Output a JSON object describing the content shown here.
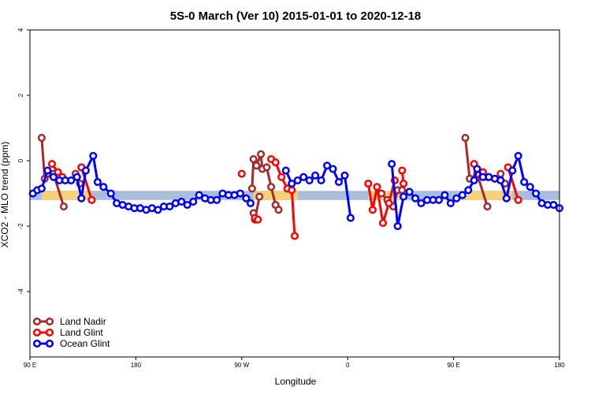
{
  "chart_data": {
    "type": "line",
    "title": "5S-0 March (Ver 10)   2015-01-01 to 2020-12-18",
    "xlabel": "Longitude",
    "ylabel": "XCO2 - MLO trend (ppm)",
    "xlim": [
      0,
      360
    ],
    "ylim": [
      -6,
      4
    ],
    "xticks": [
      0,
      72,
      144,
      216,
      288,
      360
    ],
    "xtick_labels": [
      "90 E",
      "180",
      "90 W",
      "0",
      "90 E",
      "180"
    ],
    "yticks": [
      -4,
      -2,
      0,
      2,
      4
    ],
    "ytick_labels": [
      "-4",
      "-2",
      "0",
      "2",
      "4"
    ],
    "band": {
      "y_min": -1.2,
      "y_max": -0.92,
      "color": "#a9bedb",
      "highlight_color": "#f5d27a",
      "highlight_ranges": [
        [
          8,
          40
        ],
        [
          152,
          182
        ],
        [
          230,
          252
        ],
        [
          296,
          328
        ]
      ]
    },
    "series": [
      {
        "name": "Land Nadir",
        "color": "#a52a2a",
        "segments": [
          [
            [
              8,
              0.7
            ],
            [
              10,
              -0.55
            ],
            [
              16,
              -0.4
            ],
            [
              23,
              -1.4
            ]
          ],
          [
            [
              31,
              -0.4
            ],
            [
              34,
              -0.7
            ]
          ],
          [
            [
              151,
              -0.85
            ],
            [
              152,
              0.05
            ],
            [
              154,
              -0.15
            ],
            [
              157,
              0.2
            ],
            [
              158,
              -0.25
            ],
            [
              161,
              -0.2
            ],
            [
              164,
              -0.8
            ],
            [
              167,
              -1.35
            ],
            [
              169,
              -1.5
            ]
          ],
          [
            [
              152,
              -1.6
            ],
            [
              153,
              -1.8
            ],
            [
              156,
              -1.1
            ]
          ],
          [
            [
              239,
              -1.0
            ],
            [
              243,
              -1.2
            ],
            [
              247,
              -1.4
            ],
            [
              250,
              -0.9
            ],
            [
              253,
              -0.9
            ]
          ],
          [
            [
              296,
              0.7
            ],
            [
              299,
              -0.55
            ],
            [
              304,
              -0.4
            ],
            [
              311,
              -1.4
            ]
          ],
          [
            [
              320,
              -0.4
            ],
            [
              323,
              -0.7
            ]
          ]
        ]
      },
      {
        "name": "Land Glint",
        "color": "#ff0000",
        "segments": [
          [
            [
              15,
              -0.1
            ],
            [
              19,
              -0.35
            ],
            [
              22,
              -0.5
            ]
          ],
          [
            [
              35,
              -0.2
            ],
            [
              42,
              -1.2
            ]
          ],
          [
            [
              144,
              -0.4
            ]
          ],
          [
            [
              153,
              -1.75
            ],
            [
              155,
              -1.8
            ]
          ],
          [
            [
              164,
              0.05
            ],
            [
              167,
              -0.05
            ],
            [
              171,
              -0.5
            ],
            [
              175,
              -0.85
            ],
            [
              178,
              -0.9
            ],
            [
              180,
              -2.3
            ]
          ],
          [
            [
              230,
              -0.7
            ],
            [
              233,
              -1.5
            ],
            [
              236,
              -0.8
            ],
            [
              240,
              -1.9
            ],
            [
              244,
              -1.3
            ],
            [
              248,
              -0.6
            ]
          ],
          [
            [
              253,
              -0.3
            ],
            [
              254,
              -0.7
            ]
          ],
          [
            [
              302,
              -0.1
            ],
            [
              308,
              -0.35
            ],
            [
              311,
              -0.5
            ]
          ],
          [
            [
              325,
              -0.2
            ],
            [
              332,
              -1.2
            ]
          ]
        ]
      },
      {
        "name": "Ocean Glint",
        "color": "#0000ff",
        "segments": [
          [
            [
              2,
              -1.0
            ],
            [
              5,
              -0.9
            ],
            [
              8,
              -0.85
            ],
            [
              12,
              -0.3
            ],
            [
              16,
              -0.5
            ],
            [
              20,
              -0.6
            ],
            [
              24,
              -0.6
            ],
            [
              28,
              -0.6
            ],
            [
              32,
              -0.5
            ],
            [
              35,
              -1.15
            ],
            [
              38,
              -0.3
            ],
            [
              43,
              0.15
            ],
            [
              46,
              -0.65
            ],
            [
              50,
              -0.8
            ],
            [
              55,
              -1.0
            ],
            [
              59,
              -1.3
            ],
            [
              63,
              -1.35
            ],
            [
              67,
              -1.4
            ],
            [
              71,
              -1.45
            ],
            [
              75,
              -1.45
            ],
            [
              79,
              -1.5
            ],
            [
              83,
              -1.45
            ],
            [
              87,
              -1.5
            ],
            [
              91,
              -1.4
            ],
            [
              95,
              -1.4
            ],
            [
              99,
              -1.3
            ],
            [
              103,
              -1.25
            ],
            [
              107,
              -1.35
            ],
            [
              111,
              -1.25
            ],
            [
              115,
              -1.05
            ],
            [
              119,
              -1.15
            ],
            [
              123,
              -1.2
            ],
            [
              127,
              -1.2
            ],
            [
              131,
              -1.0
            ],
            [
              135,
              -1.05
            ],
            [
              139,
              -1.05
            ],
            [
              143,
              -1.0
            ],
            [
              147,
              -1.15
            ],
            [
              150,
              -1.3
            ]
          ],
          [
            [
              174,
              -0.3
            ],
            [
              178,
              -0.7
            ],
            [
              182,
              -0.6
            ],
            [
              186,
              -0.5
            ],
            [
              190,
              -0.6
            ],
            [
              194,
              -0.45
            ],
            [
              198,
              -0.6
            ],
            [
              202,
              -0.15
            ],
            [
              206,
              -0.25
            ],
            [
              210,
              -0.65
            ],
            [
              214,
              -0.45
            ],
            [
              218,
              -1.75
            ]
          ],
          [
            [
              246,
              -0.1
            ],
            [
              250,
              -2.0
            ],
            [
              254,
              -1.1
            ],
            [
              258,
              -0.95
            ],
            [
              262,
              -1.15
            ],
            [
              266,
              -1.3
            ],
            [
              270,
              -1.2
            ],
            [
              274,
              -1.2
            ],
            [
              278,
              -1.2
            ],
            [
              282,
              -1.05
            ],
            [
              286,
              -1.3
            ],
            [
              290,
              -1.15
            ],
            [
              294,
              -1.05
            ],
            [
              298,
              -0.9
            ],
            [
              302,
              -0.6
            ],
            [
              304,
              -0.25
            ],
            [
              308,
              -0.5
            ],
            [
              312,
              -0.5
            ],
            [
              316,
              -0.55
            ],
            [
              320,
              -0.6
            ],
            [
              324,
              -1.15
            ],
            [
              328,
              -0.3
            ],
            [
              332,
              0.15
            ],
            [
              336,
              -0.65
            ],
            [
              340,
              -0.8
            ],
            [
              344,
              -1.0
            ],
            [
              348,
              -1.3
            ],
            [
              352,
              -1.35
            ],
            [
              356,
              -1.35
            ],
            [
              360,
              -1.45
            ]
          ]
        ]
      }
    ],
    "legend": {
      "position": "bottom-left",
      "entries": [
        "Land Nadir",
        "Land Glint",
        "Ocean Glint"
      ]
    }
  }
}
